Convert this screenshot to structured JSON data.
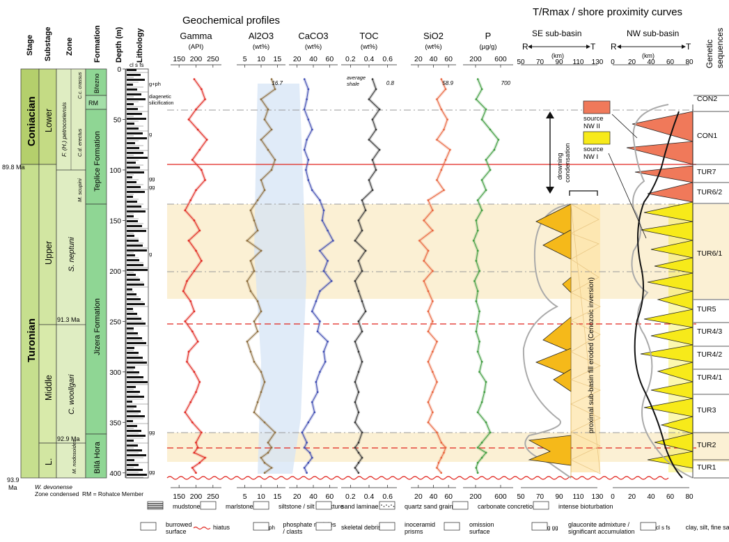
{
  "headings": {
    "geochem": "Geochemical profiles",
    "shore": "T/Rmax / shore proximity curves",
    "stage": "Stage",
    "substage": "Substage",
    "zone": "Zone",
    "formation": "Formation",
    "depth": "Depth (m)",
    "lithology": "Lithology",
    "lith_scale": "cl   s   fs",
    "genetic1": "Genetic",
    "genetic2": "sequences",
    "se_basin": "SE sub-basin",
    "nw_basin": "NW sub-basin",
    "km": "(km)",
    "R": "R",
    "T": "T"
  },
  "stratigraphy": {
    "stages": [
      "Coniacian",
      "Turonian"
    ],
    "substages": [
      "Lower",
      "Upper",
      "Middle",
      "L."
    ],
    "zones": [
      "F. (H.) petrocoriensis",
      "C.d. erectus",
      "C.c. crassus",
      "M. scupini",
      "S. neptuni",
      "C. woollgari",
      "M. nodosoides"
    ],
    "formations": [
      "Březno",
      "RM",
      "Teplice Formation",
      "Jizera Formation",
      "Bílá Hora"
    ],
    "ages": [
      "89.8 Ma",
      "91.3 Ma",
      "92.9 Ma",
      "93.9",
      "Ma"
    ],
    "footnote1": "W. devonense",
    "footnote2": "Zone condensed",
    "footnote3": "RM = Rohatce Member"
  },
  "depth_axis": {
    "ticks": [
      0,
      50,
      100,
      150,
      200,
      250,
      300,
      350,
      400
    ],
    "ylim": [
      0,
      405
    ]
  },
  "lith_marks": [
    "g+ph",
    "diagenetic",
    "silicification",
    "g",
    "gg",
    "gg",
    "g",
    "gg",
    "gg"
  ],
  "geochem_tracks": [
    {
      "key": "gamma",
      "label": "Gamma",
      "unit": "(API)",
      "ticks": [
        "150",
        "200",
        "250"
      ],
      "color": "#e0231c"
    },
    {
      "key": "al2o3",
      "label": "Al2O3",
      "unit": "(wt%)",
      "ticks": [
        "5",
        "10",
        "15"
      ],
      "color": "#8a6a3a",
      "annotation": "16.7"
    },
    {
      "key": "caco3",
      "label": "CaCO3",
      "unit": "(wt%)",
      "ticks": [
        "20",
        "40",
        "60"
      ],
      "color": "#3a48b0"
    },
    {
      "key": "toc",
      "label": "TOC",
      "unit": "(wt%)",
      "ticks": [
        "0.2",
        "0.4",
        "0.6"
      ],
      "color": "#333333",
      "annotation": "0.8",
      "note1": "average",
      "note2": "shale"
    },
    {
      "key": "sio2",
      "label": "SiO2",
      "unit": "(wt%)",
      "ticks": [
        "20",
        "40",
        "60"
      ],
      "color": "#e8623a",
      "annotation": "58.9"
    },
    {
      "key": "p",
      "label": "P",
      "unit": "(µg/g)",
      "ticks": [
        "200",
        "600"
      ],
      "color": "#3c9a3c",
      "annotation": "700"
    }
  ],
  "shore_axes": {
    "se": {
      "ticks": [
        "50",
        "70",
        "90",
        "110",
        "130"
      ]
    },
    "nw": {
      "ticks": [
        "0",
        "20",
        "40",
        "60",
        "80"
      ]
    }
  },
  "shore_annotations": {
    "source_nw2_1": "source",
    "source_nw2_2": "NW II",
    "source_nw1_1": "source",
    "source_nw1_2": "NW I",
    "drowning1": "drowning",
    "drowning2": "condensation",
    "eroded": "proximal sub-basin fill eroded (Cenozoic inversion)"
  },
  "sequences": [
    "CON2",
    "CON1",
    "TUR7",
    "TUR6/2",
    "TUR6/1",
    "TUR5",
    "TUR4/3",
    "TUR4/2",
    "TUR4/1",
    "TUR3",
    "TUR2",
    "TUR1"
  ],
  "legend": [
    {
      "label": "mudstone"
    },
    {
      "label": "marlstone"
    },
    {
      "label": "siltstone / silt admixture"
    },
    {
      "label": "sand laminae / lens"
    },
    {
      "label": "quartz sand grains"
    },
    {
      "label": "carbonate concretions"
    },
    {
      "label": "intense bioturbation"
    },
    {
      "label": "burrowed surface",
      "line1": "burrowed",
      "line2": "surface"
    },
    {
      "label": "hiatus"
    },
    {
      "label": "phosphate nodules / clasts",
      "line1": "phosphate nodules",
      "line2": "/ clasts",
      "prefix": "ph"
    },
    {
      "label": "skeletal debris"
    },
    {
      "label": "inoceramid prisms",
      "line1": "inoceramid",
      "line2": "prisms"
    },
    {
      "label": "omission surface",
      "line1": "omission",
      "line2": "surface"
    },
    {
      "label": "glauconite admixture / significant accumulation",
      "line1": "glauconite admixture /",
      "line2": "significant accumulation",
      "prefix": "g  gg"
    },
    {
      "label": "clay, silt, fine sand",
      "prefix": "cl  s  fs"
    }
  ],
  "colors": {
    "coniacian": "#b4cf6c",
    "turonian": "#c6df8e",
    "formation": "#8fd694",
    "zone": "#dfedc2",
    "highlight_band": "#fbf0d4",
    "blue_band": "#d6e4f5",
    "red_line": "#e0231c",
    "source_nw2": "#f0795a",
    "source_nw1": "#f7ea1a",
    "orange_fill": "#f5b91a",
    "light_orange": "#fde3a4",
    "gray_dash": "#9a9a9a"
  },
  "chart_data": {
    "type": "line",
    "y_axis": {
      "label": "Depth (m)",
      "ylim": [
        0,
        405
      ],
      "ticks": [
        0,
        50,
        100,
        150,
        200,
        250,
        300,
        350,
        400
      ]
    },
    "series": [
      {
        "name": "Gamma (API)",
        "xlim": [
          130,
          270
        ],
        "x": [
          195,
          215,
          225,
          200,
          180,
          205,
          230,
          210,
          190,
          215,
          225,
          200,
          185,
          170,
          195,
          210,
          180,
          200,
          215,
          195,
          175,
          165,
          185,
          195,
          170,
          190,
          205,
          180,
          175,
          195,
          210,
          200,
          185,
          170,
          190,
          215,
          200,
          205,
          195,
          225,
          210,
          190,
          200
        ],
        "y": [
          10,
          20,
          30,
          40,
          50,
          60,
          70,
          80,
          90,
          100,
          110,
          120,
          130,
          140,
          150,
          160,
          170,
          180,
          190,
          200,
          210,
          220,
          230,
          240,
          250,
          260,
          270,
          280,
          290,
          300,
          310,
          320,
          330,
          340,
          350,
          360,
          370,
          375,
          380,
          385,
          390,
          395,
          400
        ]
      },
      {
        "name": "Al2O3 (wt%)",
        "xlim": [
          2,
          16
        ],
        "x": [
          12,
          13,
          9,
          11,
          10,
          12,
          9,
          11,
          13,
          12,
          9,
          10,
          8,
          6,
          7,
          8,
          5,
          9,
          6,
          7,
          5,
          6,
          8,
          9,
          7,
          8,
          5,
          6,
          7,
          9,
          10,
          9,
          8,
          7,
          10,
          13,
          11,
          12,
          11,
          9,
          10,
          12,
          10
        ],
        "y": [
          10,
          20,
          30,
          40,
          50,
          60,
          70,
          80,
          90,
          100,
          110,
          120,
          130,
          140,
          150,
          160,
          170,
          180,
          190,
          200,
          210,
          220,
          230,
          240,
          250,
          260,
          270,
          280,
          290,
          300,
          310,
          320,
          330,
          340,
          350,
          360,
          370,
          375,
          380,
          385,
          390,
          395,
          400
        ]
      },
      {
        "name": "CaCO3 (wt%)",
        "xlim": [
          5,
          68
        ],
        "x": [
          25,
          30,
          28,
          25,
          30,
          35,
          28,
          25,
          30,
          27,
          30,
          35,
          45,
          50,
          48,
          55,
          62,
          45,
          55,
          50,
          60,
          45,
          40,
          35,
          45,
          42,
          55,
          50,
          52,
          45,
          40,
          42,
          35,
          38,
          30,
          22,
          28,
          25,
          32,
          35,
          30,
          25,
          28
        ],
        "y": [
          10,
          20,
          30,
          40,
          50,
          60,
          70,
          80,
          90,
          100,
          110,
          120,
          130,
          140,
          150,
          160,
          170,
          180,
          190,
          200,
          210,
          220,
          230,
          240,
          250,
          260,
          270,
          280,
          290,
          300,
          310,
          320,
          330,
          340,
          350,
          360,
          370,
          375,
          380,
          385,
          390,
          395,
          400
        ]
      },
      {
        "name": "TOC (wt%)",
        "xlim": [
          0.05,
          0.85
        ],
        "x": [
          0.5,
          0.55,
          0.45,
          0.6,
          0.5,
          0.55,
          0.45,
          0.6,
          0.5,
          0.55,
          0.45,
          0.5,
          0.35,
          0.4,
          0.3,
          0.35,
          0.25,
          0.4,
          0.3,
          0.35,
          0.25,
          0.3,
          0.35,
          0.4,
          0.3,
          0.35,
          0.25,
          0.3,
          0.35,
          0.3,
          0.25,
          0.3,
          0.25,
          0.3,
          0.25,
          0.35,
          0.3,
          0.25,
          0.3,
          0.35,
          0.3,
          0.25,
          0.3
        ],
        "y": [
          10,
          20,
          30,
          40,
          50,
          60,
          70,
          80,
          90,
          100,
          110,
          120,
          130,
          140,
          150,
          160,
          170,
          180,
          190,
          200,
          210,
          220,
          230,
          240,
          250,
          260,
          270,
          280,
          290,
          300,
          310,
          320,
          330,
          340,
          350,
          360,
          370,
          375,
          380,
          385,
          390,
          395,
          400
        ]
      },
      {
        "name": "SiO2 (wt%)",
        "xlim": [
          10,
          62
        ],
        "x": [
          45,
          50,
          40,
          45,
          52,
          48,
          40,
          55,
          50,
          45,
          40,
          48,
          30,
          35,
          25,
          35,
          20,
          30,
          25,
          35,
          25,
          30,
          35,
          30,
          35,
          30,
          40,
          35,
          30,
          35,
          40,
          35,
          30,
          35,
          30,
          40,
          45,
          50,
          48,
          45,
          42,
          40,
          45
        ],
        "y": [
          10,
          20,
          30,
          40,
          50,
          60,
          70,
          80,
          90,
          100,
          110,
          120,
          130,
          140,
          150,
          160,
          170,
          180,
          190,
          200,
          210,
          220,
          230,
          240,
          250,
          260,
          270,
          280,
          290,
          300,
          310,
          320,
          330,
          340,
          350,
          360,
          370,
          375,
          380,
          385,
          390,
          395,
          400
        ]
      },
      {
        "name": "P (µg/g)",
        "xlim": [
          120,
          730
        ],
        "x": [
          300,
          350,
          280,
          400,
          350,
          450,
          550,
          500,
          400,
          450,
          350,
          400,
          300,
          350,
          280,
          300,
          250,
          300,
          280,
          320,
          260,
          300,
          280,
          320,
          300,
          280,
          320,
          300,
          350,
          320,
          400,
          380,
          350,
          300,
          400,
          450,
          350,
          300,
          400,
          350,
          300,
          280,
          300
        ],
        "y": [
          10,
          20,
          30,
          40,
          50,
          60,
          70,
          80,
          90,
          100,
          110,
          120,
          130,
          140,
          150,
          160,
          170,
          180,
          190,
          200,
          210,
          220,
          230,
          240,
          250,
          260,
          270,
          280,
          290,
          300,
          310,
          320,
          330,
          340,
          350,
          360,
          370,
          375,
          380,
          385,
          390,
          395,
          400
        ]
      },
      {
        "name": "SE sub-basin (km)",
        "xlim": [
          45,
          135
        ],
        "x": [
          null,
          null,
          null,
          null,
          115,
          120,
          105,
          115,
          98,
          72,
          70,
          90,
          105,
          78,
          75,
          105,
          110,
          68,
          110,
          100
        ],
        "y": [
          0,
          50,
          100,
          120,
          135,
          150,
          180,
          200,
          220,
          250,
          270,
          300,
          320,
          340,
          350,
          360,
          370,
          380,
          390,
          405
        ]
      },
      {
        "name": "NW sub-basin (km)",
        "xlim": [
          -5,
          85
        ],
        "x": [
          55,
          40,
          30,
          45,
          65,
          50,
          30,
          15,
          20,
          35,
          30,
          15,
          10,
          25,
          25,
          30,
          40,
          45,
          55,
          75,
          80
        ],
        "y": [
          30,
          40,
          60,
          80,
          100,
          120,
          140,
          160,
          180,
          200,
          220,
          240,
          260,
          280,
          300,
          320,
          340,
          360,
          380,
          395,
          405
        ]
      }
    ]
  }
}
